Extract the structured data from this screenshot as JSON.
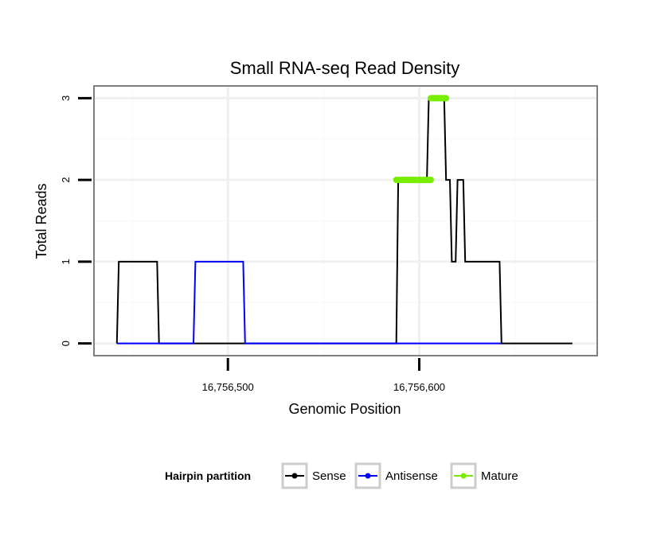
{
  "chart_data": {
    "type": "line",
    "title": "Small RNA-seq Read Density",
    "xlabel": "Genomic Position",
    "ylabel": "Total Reads",
    "xlim": [
      16756430,
      16756693
    ],
    "ylim": [
      -0.15,
      3.15
    ],
    "x_ticks": [
      {
        "value": 16756500,
        "label": "16,756,500"
      },
      {
        "value": 16756600,
        "label": "16,756,600"
      }
    ],
    "y_ticks": [
      {
        "value": 0,
        "label": "0"
      },
      {
        "value": 1,
        "label": "1"
      },
      {
        "value": 2,
        "label": "2"
      },
      {
        "value": 3,
        "label": "3"
      }
    ],
    "grid": true,
    "series": [
      {
        "name": "Sense",
        "color": "#000000",
        "x": [
          16756442,
          16756443,
          16756463,
          16756464,
          16756588,
          16756589,
          16756604,
          16756605,
          16756613,
          16756614,
          16756616,
          16756617,
          16756619,
          16756620,
          16756623,
          16756624,
          16756629,
          16756630,
          16756642,
          16756643,
          16756680
        ],
        "y": [
          0,
          1,
          1,
          0,
          0,
          2,
          2,
          3,
          3,
          2,
          2,
          1,
          1,
          2,
          2,
          1,
          1,
          1,
          1,
          0,
          0
        ]
      },
      {
        "name": "Antisense",
        "color": "#0000ff",
        "x": [
          16756442,
          16756482,
          16756483,
          16756508,
          16756509,
          16756643
        ],
        "y": [
          0,
          0,
          1,
          1,
          0,
          0
        ]
      },
      {
        "name": "Mature",
        "color": "#77ee00",
        "segments": [
          {
            "x": [
              16756588,
              16756606
            ],
            "y": 2
          },
          {
            "x": [
              16756606,
              16756614
            ],
            "y": 3
          }
        ]
      }
    ],
    "legend": {
      "title": "Hairpin partition",
      "placement": "bottom",
      "entries": [
        {
          "label": "Sense",
          "color": "#000000"
        },
        {
          "label": "Antisense",
          "color": "#0000ff"
        },
        {
          "label": "Mature",
          "color": "#77ee00"
        }
      ]
    }
  }
}
